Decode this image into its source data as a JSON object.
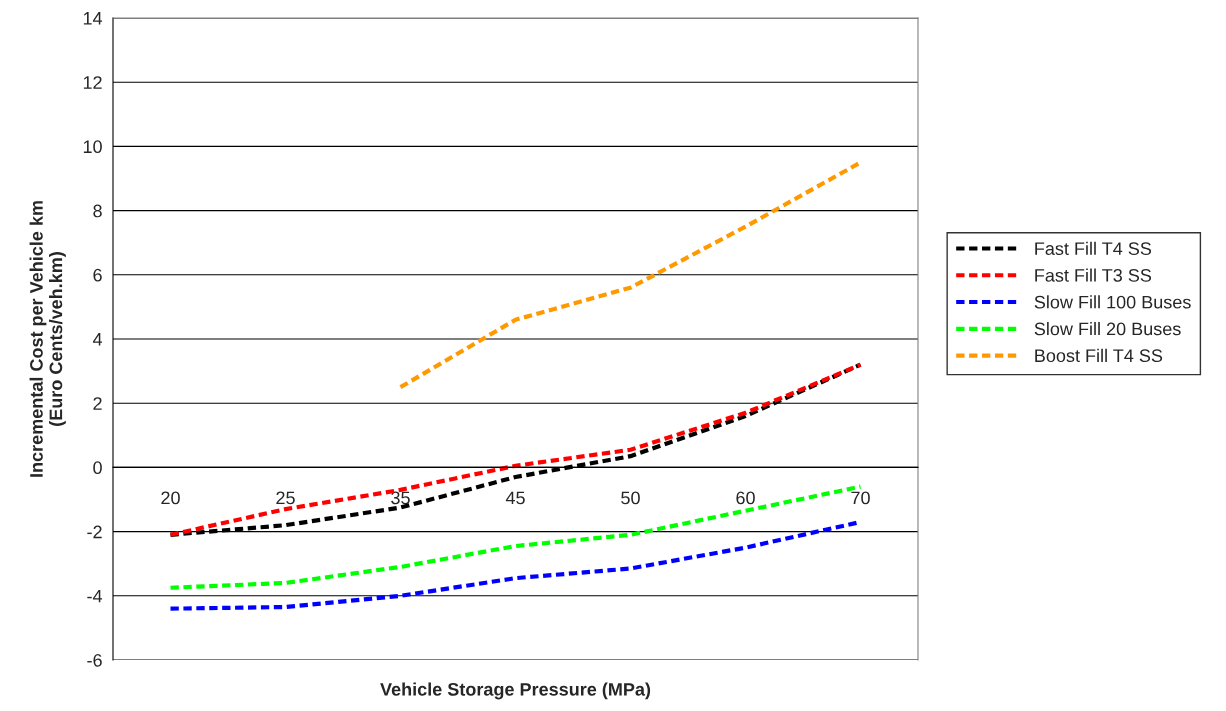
{
  "chart_data": {
    "type": "line",
    "xlabel": "Vehicle Storage Pressure (MPa)",
    "ylabel": "Incremental Cost per Vehicle km\n(Euro Cents/veh.km)",
    "categories": [
      "20",
      "25",
      "35",
      "45",
      "50",
      "60",
      "70"
    ],
    "series": [
      {
        "name": "Fast Fill T4 SS",
        "color": "#000000",
        "values": [
          -2.1,
          -1.8,
          -1.25,
          -0.3,
          0.35,
          1.6,
          3.2
        ]
      },
      {
        "name": "Fast Fill T3 SS",
        "color": "#ff0000",
        "values": [
          -2.1,
          -1.3,
          -0.7,
          0.05,
          0.55,
          1.7,
          3.2
        ]
      },
      {
        "name": "Slow Fill 100 Buses",
        "color": "#0000ff",
        "values": [
          -4.4,
          -4.35,
          -4.0,
          -3.45,
          -3.15,
          -2.5,
          -1.7
        ]
      },
      {
        "name": "Slow Fill 20 Buses",
        "color": "#00ff00",
        "values": [
          -3.75,
          -3.6,
          -3.1,
          -2.45,
          -2.1,
          -1.35,
          -0.6
        ]
      },
      {
        "name": "Boost Fill T4 SS",
        "color": "#ff9900",
        "values": [
          null,
          null,
          2.5,
          4.6,
          5.6,
          7.5,
          9.5
        ]
      }
    ],
    "ylim": [
      -6,
      14
    ],
    "yticks": [
      -6,
      -4,
      -2,
      0,
      2,
      4,
      6,
      8,
      10,
      12,
      14
    ],
    "grid": "y",
    "legend": "right",
    "line_style": "dashed",
    "marker": "none"
  }
}
